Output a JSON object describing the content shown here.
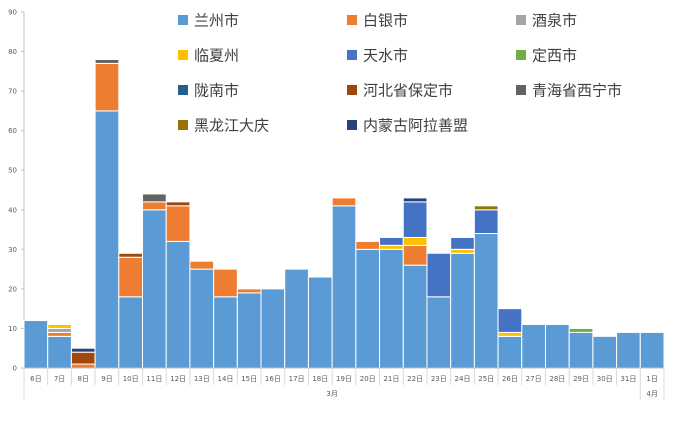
{
  "chart_data": {
    "type": "bar",
    "stacked": true,
    "title": "",
    "xlabel": "",
    "ylabel": "",
    "ylim": [
      0,
      90
    ],
    "yticks": [
      0,
      10,
      20,
      30,
      40,
      50,
      60,
      70,
      80,
      90
    ],
    "grid": false,
    "legend_position": "top-right",
    "categories": [
      "6日",
      "7日",
      "8日",
      "9日",
      "10日",
      "11日",
      "12日",
      "13日",
      "14日",
      "15日",
      "16日",
      "17日",
      "18日",
      "19日",
      "20日",
      "21日",
      "22日",
      "23日",
      "24日",
      "25日",
      "26日",
      "27日",
      "28日",
      "29日",
      "30日",
      "31日",
      "1日"
    ],
    "month_groups": [
      {
        "label": "3月",
        "start": 0,
        "end": 25
      },
      {
        "label": "4月",
        "start": 26,
        "end": 26
      }
    ],
    "series": [
      {
        "name": "兰州市",
        "color": "#5B9BD5",
        "values": [
          12,
          8,
          0,
          65,
          18,
          40,
          32,
          25,
          18,
          19,
          20,
          25,
          23,
          41,
          30,
          30,
          26,
          18,
          29,
          34,
          8,
          11,
          11,
          9,
          8,
          9,
          9
        ]
      },
      {
        "name": "白银市",
        "color": "#ED7D31",
        "values": [
          0,
          1,
          1,
          12,
          10,
          2,
          9,
          2,
          7,
          1,
          0,
          0,
          0,
          2,
          2,
          0,
          5,
          0,
          0,
          0,
          0,
          0,
          0,
          0,
          0,
          0,
          0
        ]
      },
      {
        "name": "酒泉市",
        "color": "#A5A5A5",
        "values": [
          0,
          1,
          0,
          0,
          0,
          0,
          0,
          0,
          0,
          0,
          0,
          0,
          0,
          0,
          0,
          0,
          0,
          0,
          0,
          0,
          0,
          0,
          0,
          0,
          0,
          0,
          0
        ]
      },
      {
        "name": "临夏州",
        "color": "#FFC000",
        "values": [
          0,
          1,
          0,
          0,
          0,
          0,
          0,
          0,
          0,
          0,
          0,
          0,
          0,
          0,
          0,
          1,
          2,
          0,
          1,
          0,
          1,
          0,
          0,
          0,
          0,
          0,
          0
        ]
      },
      {
        "name": "天水市",
        "color": "#4472C4",
        "values": [
          0,
          0,
          0,
          0,
          0,
          0,
          0,
          0,
          0,
          0,
          0,
          0,
          0,
          0,
          0,
          2,
          9,
          11,
          3,
          6,
          6,
          0,
          0,
          0,
          0,
          0,
          0
        ]
      },
      {
        "name": "定西市",
        "color": "#70AD47",
        "values": [
          0,
          0,
          0,
          0,
          0,
          0,
          0,
          0,
          0,
          0,
          0,
          0,
          0,
          0,
          0,
          0,
          0,
          0,
          0,
          0,
          0,
          0,
          0,
          1,
          0,
          0,
          0
        ]
      },
      {
        "name": "陇南市",
        "color": "#255E91",
        "values": [
          0,
          0,
          0,
          0,
          0,
          0,
          0,
          0,
          0,
          0,
          0,
          0,
          0,
          0,
          0,
          0,
          0,
          0,
          0,
          0,
          0,
          0,
          0,
          0,
          0,
          0,
          0
        ]
      },
      {
        "name": "河北省保定市",
        "color": "#9E480E",
        "values": [
          0,
          0,
          3,
          0,
          1,
          0,
          1,
          0,
          0,
          0,
          0,
          0,
          0,
          0,
          0,
          0,
          0,
          0,
          0,
          0,
          0,
          0,
          0,
          0,
          0,
          0,
          0
        ]
      },
      {
        "name": "青海省西宁市",
        "color": "#636363",
        "values": [
          0,
          0,
          0,
          1,
          0,
          2,
          0,
          0,
          0,
          0,
          0,
          0,
          0,
          0,
          0,
          0,
          0,
          0,
          0,
          0,
          0,
          0,
          0,
          0,
          0,
          0,
          0
        ]
      },
      {
        "name": "黑龙江大庆",
        "color": "#997300",
        "values": [
          0,
          0,
          0,
          0,
          0,
          0,
          0,
          0,
          0,
          0,
          0,
          0,
          0,
          0,
          0,
          0,
          0,
          0,
          0,
          1,
          0,
          0,
          0,
          0,
          0,
          0,
          0
        ]
      },
      {
        "name": "内蒙古阿拉善盟",
        "color": "#264478",
        "values": [
          0,
          0,
          1,
          0,
          0,
          0,
          0,
          0,
          0,
          0,
          0,
          0,
          0,
          0,
          0,
          0,
          1,
          0,
          0,
          0,
          0,
          0,
          0,
          0,
          0,
          0,
          0
        ]
      }
    ]
  }
}
